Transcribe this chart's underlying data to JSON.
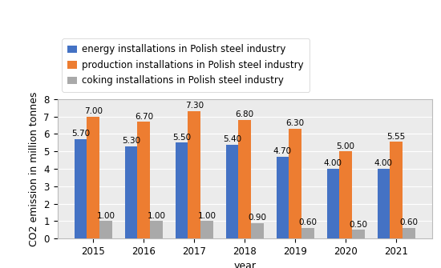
{
  "years": [
    2015,
    2016,
    2017,
    2018,
    2019,
    2020,
    2021
  ],
  "energy": [
    5.7,
    5.3,
    5.5,
    5.4,
    4.7,
    4.0,
    4.0
  ],
  "production": [
    7.0,
    6.7,
    7.3,
    6.8,
    6.3,
    5.0,
    5.55
  ],
  "coking": [
    1.0,
    1.0,
    1.0,
    0.9,
    0.6,
    0.5,
    0.6
  ],
  "energy_color": "#4472C4",
  "production_color": "#ED7D31",
  "coking_color": "#A9A9A9",
  "energy_label": "energy installations in Polish steel industry",
  "production_label": "production installations in Polish steel industry",
  "coking_label": "coking installations in Polish steel industry",
  "ylabel": "CO2 emission in million tonnes",
  "xlabel": "year",
  "ylim": [
    0,
    8
  ],
  "yticks": [
    0,
    1,
    2,
    3,
    4,
    5,
    6,
    7,
    8
  ],
  "bar_width": 0.25,
  "background_color": "#ffffff",
  "plot_bg_color": "#ebebeb",
  "font_size_label": 9,
  "font_size_tick": 8.5,
  "font_size_annotation": 7.5,
  "legend_font_size": 8.5
}
